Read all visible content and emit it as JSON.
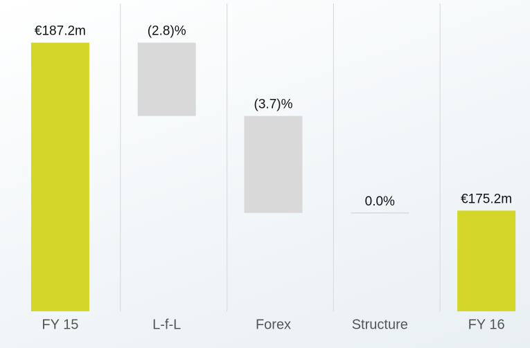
{
  "chart_data": {
    "type": "waterfall",
    "categories": [
      "FY 15",
      "L-f-L",
      "Forex",
      "Structure",
      "FY 16"
    ],
    "values": [
      187.2,
      -2.8,
      -3.7,
      0.0,
      175.2
    ],
    "value_labels": [
      "€187.2m",
      "(2.8)%",
      "(3.7)%",
      "0.0%",
      "€175.2m"
    ],
    "measure": [
      "total",
      "percent",
      "percent",
      "percent",
      "total"
    ],
    "total_color": "#d4d62a",
    "step_color": "#d9d9d9",
    "ylim": [
      168,
      190
    ],
    "grid": true
  }
}
